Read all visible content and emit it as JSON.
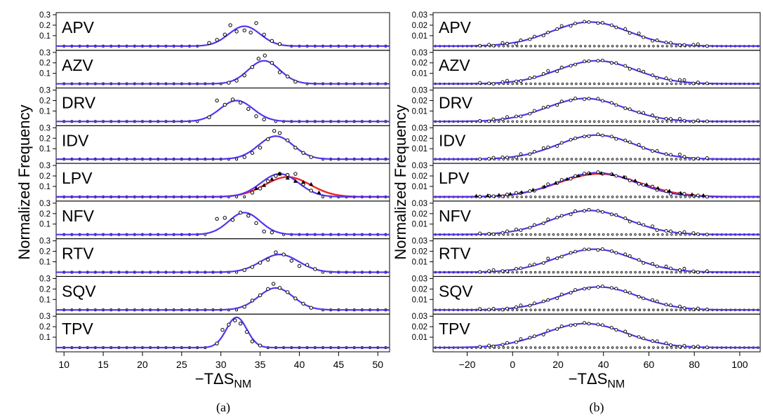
{
  "figure": {
    "ylabel": "Normalized Frequency",
    "xlabel_main": "−TΔS",
    "xlabel_sub": "NM"
  },
  "chart_data": [
    {
      "type": "line",
      "caption": "(a)",
      "xlabel": "−TΔS_NM",
      "ylabel": "Normalized Frequency",
      "xlim": [
        9,
        51.5
      ],
      "ylim": [
        0,
        0.3
      ],
      "x_ticks": [
        10,
        15,
        20,
        25,
        30,
        35,
        40,
        45,
        50
      ],
      "y_ticks": [
        0.1,
        0.2,
        0.3
      ],
      "y_tick_labels": [
        "0.1",
        "0.2",
        "0.3"
      ],
      "grid": false,
      "panels": [
        {
          "label": "APV",
          "curve": {
            "mean": 33.0,
            "sd": 2.0,
            "peak": 0.19
          },
          "points": [
            [
              28.5,
              0.03
            ],
            [
              29.5,
              0.06
            ],
            [
              30.5,
              0.11
            ],
            [
              31.2,
              0.2
            ],
            [
              32.0,
              0.14
            ],
            [
              33.0,
              0.15
            ],
            [
              33.8,
              0.13
            ],
            [
              34.5,
              0.22
            ],
            [
              35.5,
              0.11
            ],
            [
              36.5,
              0.05
            ],
            [
              37.5,
              0.02
            ]
          ]
        },
        {
          "label": "AZV",
          "curve": {
            "mean": 35.5,
            "sd": 2.0,
            "peak": 0.22
          },
          "points": [
            [
              31.0,
              0.01
            ],
            [
              32.0,
              0.03
            ],
            [
              33.0,
              0.08
            ],
            [
              34.0,
              0.16
            ],
            [
              34.8,
              0.24
            ],
            [
              35.6,
              0.27
            ],
            [
              36.5,
              0.2
            ],
            [
              37.5,
              0.11
            ],
            [
              38.5,
              0.07
            ],
            [
              39.5,
              0.02
            ]
          ]
        },
        {
          "label": "DRV",
          "curve": {
            "mean": 32.0,
            "sd": 2.1,
            "peak": 0.2
          },
          "points": [
            [
              28.5,
              0.04
            ],
            [
              29.5,
              0.2
            ],
            [
              30.5,
              0.16
            ],
            [
              31.5,
              0.21
            ],
            [
              32.5,
              0.18
            ],
            [
              33.5,
              0.12
            ],
            [
              34.5,
              0.05
            ],
            [
              35.5,
              0.02
            ]
          ]
        },
        {
          "label": "IDV",
          "curve": {
            "mean": 37.0,
            "sd": 2.2,
            "peak": 0.22
          },
          "points": [
            [
              33.0,
              0.02
            ],
            [
              34.0,
              0.06
            ],
            [
              35.0,
              0.11
            ],
            [
              36.0,
              0.19
            ],
            [
              36.8,
              0.27
            ],
            [
              37.5,
              0.25
            ],
            [
              38.5,
              0.18
            ],
            [
              39.5,
              0.11
            ],
            [
              40.5,
              0.06
            ],
            [
              41.5,
              0.02
            ]
          ]
        },
        {
          "label": "LPV",
          "curve": {
            "mean": 37.5,
            "sd": 2.4,
            "peak": 0.22
          },
          "curve2": {
            "mean": 38.5,
            "sd": 2.9,
            "peak": 0.19
          },
          "points": [
            [
              34.0,
              0.04
            ],
            [
              35.0,
              0.08
            ],
            [
              36.0,
              0.15
            ],
            [
              37.0,
              0.2
            ],
            [
              37.5,
              0.22
            ],
            [
              38.5,
              0.21
            ],
            [
              39.5,
              0.22
            ],
            [
              40.5,
              0.12
            ],
            [
              41.5,
              0.06
            ]
          ],
          "points2": [
            [
              34.5,
              0.08
            ],
            [
              35.5,
              0.11
            ],
            [
              36.5,
              0.17
            ],
            [
              37.5,
              0.22
            ],
            [
              38.5,
              0.18
            ],
            [
              39.5,
              0.15
            ],
            [
              40.5,
              0.14
            ],
            [
              41.5,
              0.12
            ],
            [
              42.5,
              0.04
            ]
          ]
        },
        {
          "label": "NFV",
          "curve": {
            "mean": 33.0,
            "sd": 2.0,
            "peak": 0.21
          },
          "points": [
            [
              29.5,
              0.15
            ],
            [
              30.5,
              0.16
            ],
            [
              31.5,
              0.14
            ],
            [
              32.5,
              0.21
            ],
            [
              33.5,
              0.18
            ],
            [
              34.5,
              0.11
            ],
            [
              35.5,
              0.03
            ],
            [
              36.5,
              0.02
            ]
          ]
        },
        {
          "label": "RTV",
          "curve": {
            "mean": 37.5,
            "sd": 2.4,
            "peak": 0.17
          },
          "points": [
            [
              33.0,
              0.02
            ],
            [
              34.0,
              0.05
            ],
            [
              35.0,
              0.09
            ],
            [
              36.0,
              0.12
            ],
            [
              37.0,
              0.19
            ],
            [
              38.0,
              0.17
            ],
            [
              39.0,
              0.11
            ],
            [
              40.0,
              0.06
            ],
            [
              41.0,
              0.07
            ],
            [
              42.0,
              0.03
            ]
          ]
        },
        {
          "label": "SQV",
          "curve": {
            "mean": 37.0,
            "sd": 2.2,
            "peak": 0.21
          },
          "points": [
            [
              33.0,
              0.03
            ],
            [
              34.0,
              0.09
            ],
            [
              35.0,
              0.14
            ],
            [
              36.0,
              0.2
            ],
            [
              36.7,
              0.25
            ],
            [
              37.5,
              0.21
            ],
            [
              38.5,
              0.17
            ],
            [
              39.5,
              0.11
            ],
            [
              40.5,
              0.06
            ],
            [
              41.5,
              0.02
            ]
          ]
        },
        {
          "label": "TPV",
          "curve": {
            "mean": 32.0,
            "sd": 1.3,
            "peak": 0.29
          },
          "points": [
            [
              29.5,
              0.04
            ],
            [
              30.2,
              0.17
            ],
            [
              31.0,
              0.22
            ],
            [
              31.8,
              0.26
            ],
            [
              32.5,
              0.23
            ],
            [
              33.3,
              0.15
            ],
            [
              34.0,
              0.06
            ],
            [
              35.0,
              0.02
            ]
          ]
        }
      ]
    },
    {
      "type": "line",
      "caption": "(b)",
      "xlabel": "−TΔS_NM",
      "ylabel": "Normalized Frequency",
      "xlim": [
        -35,
        109
      ],
      "ylim": [
        0,
        0.03
      ],
      "x_ticks": [
        -20,
        0,
        20,
        40,
        60,
        80,
        100
      ],
      "y_ticks": [
        0.01,
        0.02,
        0.03
      ],
      "y_tick_labels": [
        "0.01",
        "0.02",
        "0.03"
      ],
      "grid": false,
      "panels": [
        {
          "label": "APV",
          "curve": {
            "mean": 34,
            "sd": 17,
            "peak": 0.023
          },
          "jitter": [
            0,
            1,
            -1,
            2,
            0,
            -2,
            1,
            0,
            1,
            -1,
            0,
            1,
            2,
            -1,
            0,
            1,
            0,
            -1,
            1,
            0
          ]
        },
        {
          "label": "AZV",
          "curve": {
            "mean": 37,
            "sd": 17,
            "peak": 0.022
          },
          "jitter": [
            1,
            0,
            -1,
            1,
            2,
            0,
            -1,
            1,
            0,
            2,
            3,
            -1,
            1,
            0,
            -1,
            1,
            0,
            0,
            1,
            -1
          ]
        },
        {
          "label": "DRV",
          "curve": {
            "mean": 32,
            "sd": 17,
            "peak": 0.022
          },
          "jitter": [
            0,
            -1,
            1,
            0,
            2,
            1,
            -1,
            0,
            1,
            2,
            0,
            -1,
            1,
            0,
            1,
            -1,
            0,
            1,
            0,
            0
          ]
        },
        {
          "label": "IDV",
          "curve": {
            "mean": 37,
            "sd": 17,
            "peak": 0.023
          },
          "jitter": [
            -1,
            0,
            1,
            1,
            0,
            -1,
            2,
            0,
            1,
            3,
            1,
            -1,
            0,
            1,
            0,
            0,
            -1,
            1,
            0,
            0
          ]
        },
        {
          "label": "LPV",
          "curve": {
            "mean": 37,
            "sd": 17,
            "peak": 0.023
          },
          "curve2": {
            "mean": 38,
            "sd": 18,
            "peak": 0.022
          },
          "jitter": [
            0,
            1,
            0,
            -1,
            1,
            2,
            0,
            1,
            -1,
            1,
            2,
            0,
            1,
            -1,
            0,
            1,
            0,
            1,
            -1,
            0
          ]
        },
        {
          "label": "NFV",
          "curve": {
            "mean": 34,
            "sd": 17,
            "peak": 0.023
          },
          "jitter": [
            1,
            0,
            -1,
            0,
            1,
            2,
            -1,
            0,
            1,
            0,
            2,
            1,
            0,
            -1,
            1,
            0,
            1,
            0,
            0,
            -1
          ]
        },
        {
          "label": "RTV",
          "curve": {
            "mean": 36,
            "sd": 17,
            "peak": 0.022
          },
          "jitter": [
            0,
            1,
            2,
            0,
            -1,
            1,
            0,
            2,
            1,
            0,
            3,
            0,
            -1,
            1,
            0,
            1,
            0,
            -1,
            1,
            0
          ]
        },
        {
          "label": "SQV",
          "curve": {
            "mean": 38,
            "sd": 17,
            "peak": 0.022
          },
          "jitter": [
            1,
            0,
            1,
            -1,
            0,
            1,
            2,
            0,
            1,
            1,
            0,
            -1,
            1,
            0,
            1,
            0,
            -1,
            0,
            1,
            0
          ]
        },
        {
          "label": "TPV",
          "curve": {
            "mean": 32,
            "sd": 18,
            "peak": 0.023
          },
          "jitter": [
            0,
            1,
            -1,
            0,
            1,
            0,
            2,
            1,
            0,
            -1,
            1,
            0,
            1,
            0,
            -1,
            1,
            0,
            0,
            1,
            0
          ]
        }
      ]
    }
  ],
  "colors": {
    "curve": "#5533ee",
    "curve2": "#ee2222",
    "axis": "#000000"
  }
}
